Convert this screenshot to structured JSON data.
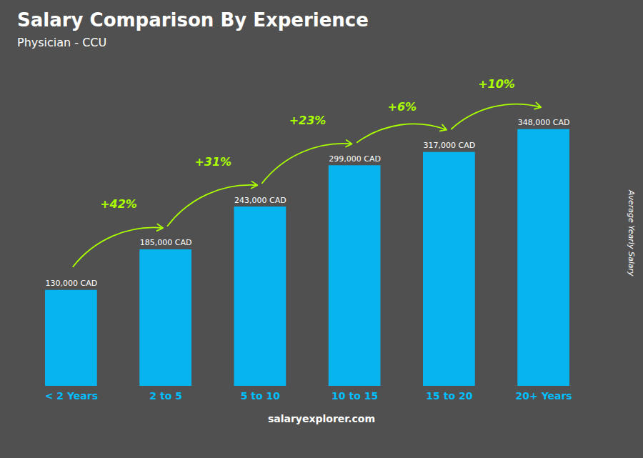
{
  "chart_data": {
    "type": "bar",
    "title": "Salary Comparison By Experience",
    "subtitle": "Physician - CCU",
    "categories": [
      "< 2 Years",
      "2 to 5",
      "5 to 10",
      "10 to 15",
      "15 to 20",
      "20+ Years"
    ],
    "values": [
      130000,
      185000,
      243000,
      299000,
      317000,
      348000
    ],
    "value_labels": [
      "130,000 CAD",
      "185,000 CAD",
      "243,000 CAD",
      "299,000 CAD",
      "317,000 CAD",
      "348,000 CAD"
    ],
    "data_labels": true,
    "color": "#00bfff",
    "ylim": [
      0,
      430000
    ],
    "ylabel": "Average Yearly Salary",
    "tick_labels": "x",
    "grid": false,
    "annotations": [
      {
        "text": "+42%",
        "color": "#aaff00"
      },
      {
        "text": "+31%",
        "color": "#aaff00"
      },
      {
        "text": "+23%",
        "color": "#aaff00"
      },
      {
        "text": "+6%",
        "color": "#aaff00"
      },
      {
        "text": "+10%",
        "color": "#aaff00"
      }
    ],
    "footer": "salaryexplorer.com"
  }
}
